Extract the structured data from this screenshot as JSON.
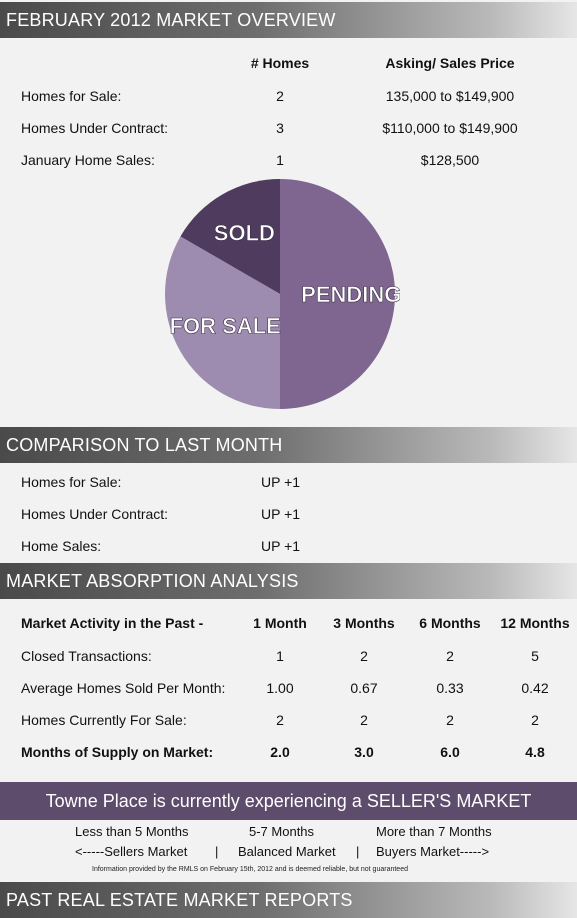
{
  "overview": {
    "title": "FEBRUARY 2012 MARKET OVERVIEW",
    "col_homes": "# Homes",
    "col_price": "Asking/ Sales Price",
    "rows": [
      {
        "label": "Homes for Sale:",
        "homes": "2",
        "price": "135,000 to $149,900"
      },
      {
        "label": "Homes Under Contract:",
        "homes": "3",
        "price": "$110,000 to $149,900"
      },
      {
        "label": "January Home Sales:",
        "homes": "1",
        "price": "$128,500"
      }
    ]
  },
  "chart_data": {
    "type": "pie",
    "slices": [
      {
        "label": "SOLD",
        "value": 1,
        "color": "#4e3b5e"
      },
      {
        "label": "PENDING",
        "value": 3,
        "color": "#7e6690"
      },
      {
        "label": "FOR SALE",
        "value": 2,
        "color": "#9e8cb0"
      }
    ]
  },
  "comparison": {
    "title": "COMPARISON TO LAST MONTH",
    "rows": [
      {
        "label": "Homes for Sale:",
        "value": "UP +1"
      },
      {
        "label": "Homes Under Contract:",
        "value": "UP +1"
      },
      {
        "label": "Home Sales:",
        "value": "UP +1"
      }
    ]
  },
  "absorption": {
    "title": "MARKET ABSORPTION ANALYSIS",
    "header": [
      "Market Activity in the Past -",
      "1 Month",
      "3 Months",
      "6 Months",
      "12 Months"
    ],
    "rows": [
      {
        "label": "Closed Transactions:",
        "values": [
          "1",
          "2",
          "2",
          "5"
        ]
      },
      {
        "label": "Average Homes Sold Per Month:",
        "values": [
          "1.00",
          "0.67",
          "0.33",
          "0.42"
        ]
      },
      {
        "label": "Homes Currently For Sale:",
        "values": [
          "2",
          "2",
          "2",
          "2"
        ]
      },
      {
        "label": "Months of Supply on Market:",
        "values": [
          "2.0",
          "3.0",
          "6.0",
          "4.8"
        ]
      }
    ]
  },
  "market_banner": "Towne Place is currently experiencing a SELLER'S MARKET",
  "legend": {
    "less": "Less than 5 Months",
    "mid": "5-7 Months",
    "more": "More than 7 Months",
    "sellers": "<-----Sellers Market",
    "sep1": "|",
    "balanced": "Balanced Market",
    "sep2": "|",
    "buyers": "Buyers Market----->"
  },
  "disclaimer": "Information provided by the RMLS on February 15th, 2012 and is deemed reliable, but not guaranteed",
  "past_reports_title": "PAST REAL ESTATE MARKET REPORTS"
}
